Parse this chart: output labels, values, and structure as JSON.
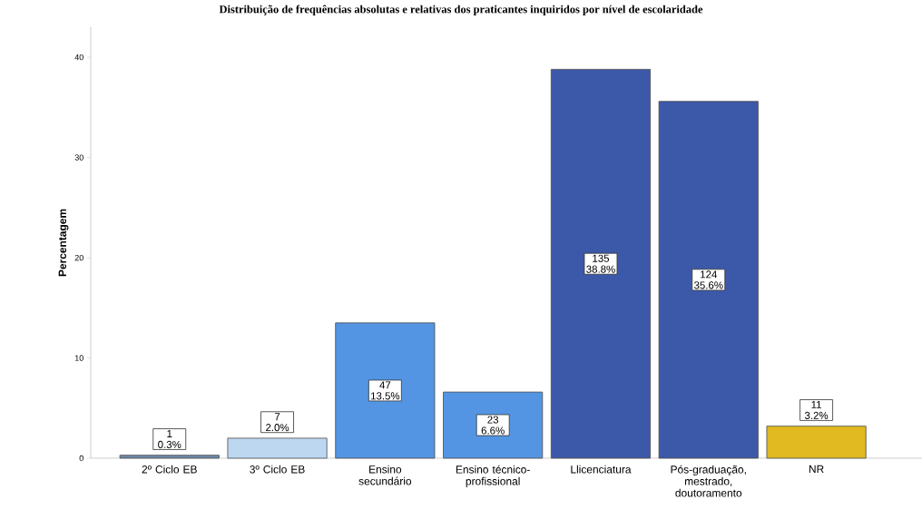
{
  "chart_data": {
    "type": "bar",
    "title": "Distribuição de frequências absolutas e relativas dos praticantes inquiridos por nível de escolaridade",
    "ylabel": "Percentagem",
    "categories": [
      "2º Ciclo EB",
      "3º Ciclo EB",
      "Ensino secundário",
      "Ensino técnico-profissional",
      "Llicenciatura",
      "Pós-graduação, mestrado, doutoramento",
      "NR"
    ],
    "values": [
      0.3,
      2.0,
      13.5,
      6.6,
      38.8,
      35.6,
      3.2
    ],
    "colors": [
      "#6f88aa",
      "#bdd7f1",
      "#5395e3",
      "#5395e3",
      "#3c58a8",
      "#3c58a8",
      "#e1b920"
    ],
    "value_labels": [
      "1 0.3%",
      "7 2.0%",
      "47 13.5%",
      "23 6.6%",
      "135 38.8%",
      "124 35.6%",
      "11 3.2%"
    ],
    "ylim": [
      0,
      43
    ],
    "yticks": [
      0,
      10,
      20,
      30,
      40
    ]
  }
}
